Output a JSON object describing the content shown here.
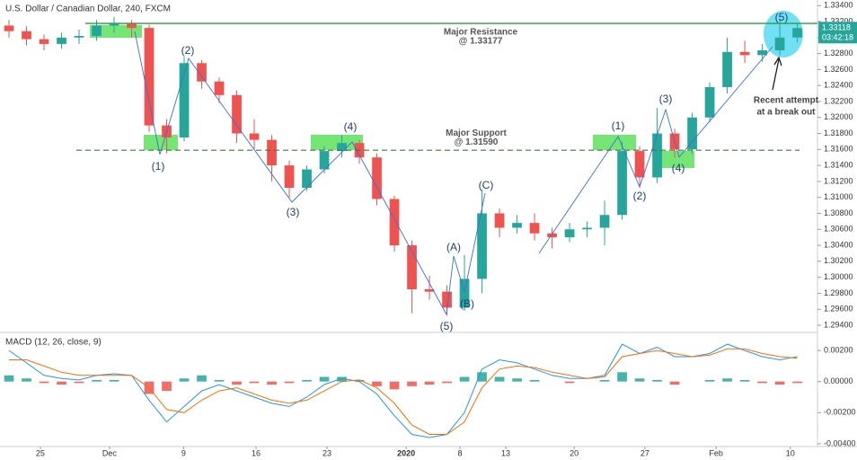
{
  "chart_data": [
    {
      "type": "candlestick",
      "title": "U.S. Dollar / Canadian Dollar, 240, FXCM",
      "categories": [
        null,
        null,
        null,
        null,
        null,
        null,
        null,
        null,
        null,
        null,
        null,
        null,
        null,
        null,
        null,
        null,
        null,
        null,
        null,
        null,
        null,
        null,
        null,
        null,
        null,
        null,
        null,
        null,
        null,
        null,
        null,
        null,
        null,
        null,
        null,
        null,
        null,
        null,
        null,
        null,
        null,
        null,
        null,
        null,
        null,
        null
      ],
      "open": [
        1.3315,
        1.3308,
        1.3298,
        1.3292,
        1.33,
        1.3302,
        1.3315,
        1.3318,
        1.3312,
        1.319,
        1.3175,
        1.3268,
        1.3245,
        1.3228,
        1.318,
        1.3172,
        1.314,
        1.3112,
        1.3135,
        1.3158,
        1.3168,
        1.315,
        1.3098,
        1.304,
        1.2985,
        1.2982,
        1.2962,
        1.2998,
        1.308,
        1.3062,
        1.3068,
        1.3055,
        1.305,
        1.306,
        1.3062,
        1.3078,
        1.3158,
        1.3125,
        1.318,
        1.316,
        1.32,
        1.3238,
        1.3282,
        1.3278,
        1.3284,
        1.33
      ],
      "high": [
        1.3322,
        1.3314,
        1.3304,
        1.3306,
        1.331,
        1.3322,
        1.3326,
        1.3322,
        1.3316,
        1.3198,
        1.3276,
        1.3272,
        1.325,
        1.3234,
        1.3198,
        1.3178,
        1.3146,
        1.314,
        1.3164,
        1.3178,
        1.3172,
        1.3155,
        1.3102,
        1.3046,
        1.3002,
        1.299,
        1.3028,
        1.311,
        1.3086,
        1.3078,
        1.308,
        1.3062,
        1.3068,
        1.307,
        1.3096,
        1.317,
        1.3164,
        1.3212,
        1.3186,
        1.3206,
        1.3244,
        1.33,
        1.3296,
        1.3292,
        1.3322,
        1.3318
      ],
      "low": [
        1.33,
        1.329,
        1.3284,
        1.3286,
        1.3292,
        1.3296,
        1.3306,
        1.33,
        1.3182,
        1.3155,
        1.317,
        1.3236,
        1.3218,
        1.3168,
        1.316,
        1.312,
        1.31,
        1.3108,
        1.313,
        1.315,
        1.3142,
        1.309,
        1.3032,
        1.2955,
        1.2972,
        1.2952,
        1.2958,
        1.298,
        1.305,
        1.3055,
        1.3046,
        1.3036,
        1.3044,
        1.305,
        1.304,
        1.3072,
        1.3112,
        1.3118,
        1.315,
        1.3154,
        1.3194,
        1.323,
        1.3268,
        1.327,
        1.3278,
        1.3294
      ],
      "close": [
        1.3308,
        1.3298,
        1.3292,
        1.33,
        1.3302,
        1.3315,
        1.3318,
        1.3312,
        1.319,
        1.3175,
        1.3268,
        1.3245,
        1.3228,
        1.318,
        1.3172,
        1.314,
        1.3112,
        1.3135,
        1.3158,
        1.3168,
        1.315,
        1.3098,
        1.304,
        1.2985,
        1.2982,
        1.2962,
        1.2998,
        1.308,
        1.3062,
        1.3068,
        1.3055,
        1.305,
        1.306,
        1.3062,
        1.3078,
        1.3158,
        1.3125,
        1.318,
        1.316,
        1.32,
        1.3238,
        1.3282,
        1.3278,
        1.3284,
        1.33,
        1.33118
      ],
      "up_color": "#26a69a",
      "down_color": "#ef5350",
      "xlim": [
        -0.513,
        46.15
      ],
      "xticks": [
        {
          "value": 1.79,
          "label": "25"
        },
        {
          "value": 5.74,
          "label": "Dec"
        },
        {
          "value": 9.97,
          "label": "9"
        },
        {
          "value": 14.1,
          "label": "16"
        },
        {
          "value": 18.15,
          "label": "23"
        },
        {
          "value": 22.67,
          "label": "2020"
        },
        {
          "value": 25.74,
          "label": "8"
        },
        {
          "value": 28.36,
          "label": "13"
        },
        {
          "value": 32.26,
          "label": "20"
        },
        {
          "value": 36.3,
          "label": "27"
        },
        {
          "value": 40.36,
          "label": "Feb"
        },
        {
          "value": 44.6,
          "label": "10"
        }
      ],
      "ylim": [
        1.2931,
        1.3347
      ],
      "yticks": [
        {
          "value": 1.294,
          "label": "1.29400"
        },
        {
          "value": 1.296,
          "label": "1.29600"
        },
        {
          "value": 1.298,
          "label": "1.29800"
        },
        {
          "value": 1.3,
          "label": "1.30000"
        },
        {
          "value": 1.302,
          "label": "1.30200"
        },
        {
          "value": 1.304,
          "label": "1.30400"
        },
        {
          "value": 1.306,
          "label": "1.30600"
        },
        {
          "value": 1.308,
          "label": "1.30800"
        },
        {
          "value": 1.31,
          "label": "1.31000"
        },
        {
          "value": 1.312,
          "label": "1.31200"
        },
        {
          "value": 1.314,
          "label": "1.31400"
        },
        {
          "value": 1.316,
          "label": "1.31600"
        },
        {
          "value": 1.318,
          "label": "1.31800"
        },
        {
          "value": 1.32,
          "label": "1.32000"
        },
        {
          "value": 1.322,
          "label": "1.32200"
        },
        {
          "value": 1.324,
          "label": "1.32400"
        },
        {
          "value": 1.326,
          "label": "1.32600"
        },
        {
          "value": 1.328,
          "label": "1.32800"
        },
        {
          "value": 1.33,
          "label": "1.33000"
        },
        {
          "value": 1.332,
          "label": "1.33200"
        },
        {
          "value": 1.334,
          "label": "1.33400"
        }
      ],
      "last_price": {
        "value": 1.33118,
        "label": "1.33118",
        "countdown": "03:42:18"
      },
      "levels": [
        {
          "label": "Major Resistance",
          "value_label": "@ 1.33177",
          "value": 1.33177,
          "color": "#2e9e3e",
          "dashed": false
        },
        {
          "label": "Major Support",
          "value_label": "@ 1.31590",
          "value": 1.3159,
          "color": "#3b7a3b",
          "dashed": true
        }
      ],
      "wave_labels": [
        "(1)",
        "(2)",
        "(3)",
        "(4)",
        "(5)",
        "(A)",
        "(B)",
        "(C)",
        "(1)",
        "(2)",
        "(3)",
        "(4)",
        "(5)"
      ],
      "annotation": [
        "Recent attempt",
        "at a break out"
      ]
    },
    {
      "type": "macd",
      "title": "MACD (12, 26, close, 9)",
      "histogram": [
        0.0004,
        0.0002,
        -0.0001,
        -0.0002,
        -0.0001,
        0.0001,
        0.0001,
        0,
        -0.0008,
        -0.0006,
        0.0002,
        0.0004,
        0.0001,
        -0.0002,
        -0.0001,
        -0.0002,
        -0.0001,
        0.0001,
        0.0003,
        0.0003,
        0.0001,
        -0.0003,
        -0.0005,
        -0.0003,
        -0.0002,
        -0.0001,
        0.0003,
        0.0006,
        0.0003,
        0.0002,
        0.0001,
        0,
        -0.0001,
        0,
        0.0001,
        0.0006,
        0.0002,
        0.0001,
        -0.0002,
        0,
        0.0001,
        0.0002,
        0.0001,
        -0.0001,
        -0.0002,
        -0.0001
      ],
      "hist_colors": [
        "#26a69a",
        "#ef5350"
      ],
      "series": [
        {
          "name": "MACD",
          "color": "#2196f3",
          "values": [
            0.002,
            0.0012,
            0.0004,
            0.0002,
            0.0001,
            0.0004,
            0.0005,
            0.0004,
            -0.0012,
            -0.0026,
            -0.0016,
            -0.0006,
            -0.0002,
            -0.0006,
            -0.001,
            -0.0014,
            -0.0016,
            -0.001,
            -0.0002,
            0.0002,
            0,
            -0.0008,
            -0.0022,
            -0.0034,
            -0.0036,
            -0.0034,
            -0.002,
            0.0008,
            0.0014,
            0.0012,
            0.0008,
            0.0004,
            0.0002,
            0.0002,
            0.0004,
            0.0024,
            0.0018,
            0.0022,
            0.0016,
            0.0016,
            0.0018,
            0.0024,
            0.002,
            0.0016,
            0.0014,
            0.0016
          ]
        },
        {
          "name": "Signal",
          "color": "#ff6d00",
          "values": [
            0.0014,
            0.0014,
            0.001,
            0.0006,
            0.0004,
            0.0004,
            0.0004,
            0.0004,
            -0.0004,
            -0.0018,
            -0.002,
            -0.0012,
            -0.0006,
            -0.0004,
            -0.0008,
            -0.0012,
            -0.0014,
            -0.0012,
            -0.0006,
            0,
            0.0001,
            -0.0004,
            -0.0014,
            -0.0028,
            -0.0034,
            -0.0034,
            -0.0026,
            -0.0004,
            0.0008,
            0.001,
            0.0009,
            0.0006,
            0.0004,
            0.0002,
            0.0003,
            0.0016,
            0.0018,
            0.002,
            0.0018,
            0.0016,
            0.0017,
            0.0021,
            0.0021,
            0.0018,
            0.0016,
            0.0015
          ]
        }
      ],
      "ylim": [
        -0.00418,
        0.00316
      ],
      "yticks": [
        {
          "value": 0.002,
          "label": "0.00200"
        },
        {
          "value": 0,
          "label": "0.00000"
        },
        {
          "value": -0.002,
          "label": "-0.00200"
        },
        {
          "value": -0.004,
          "label": "-0.00400"
        }
      ]
    }
  ]
}
